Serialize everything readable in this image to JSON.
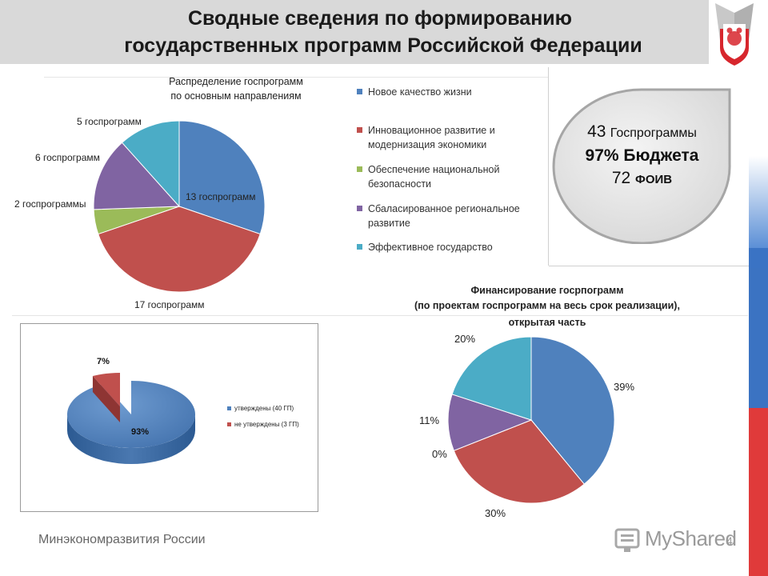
{
  "header": {
    "title_line1": "Сводные сведения по формированию",
    "title_line2": "государственных программ Российской Федерации"
  },
  "summary": {
    "line1_num": "43",
    "line1_text": "Госпрограммы",
    "line2": "97% Бюджета",
    "line3_num": "72",
    "line3_text": "ФОИВ"
  },
  "colors": {
    "blue": "#4f81bd",
    "red": "#c0504d",
    "green": "#9bbb59",
    "purple": "#8064a2",
    "teal": "#4bacc6"
  },
  "chart_data": [
    {
      "type": "pie",
      "title_line1": "Распределение госпрограмм",
      "title_line2": "по основным направлениям",
      "categories": [
        "Новое качество жизни",
        "Инновационное развитие и модернизация экономики",
        "Обеспечение национальной безопасности",
        "Сбаласированное региональное развитие",
        "Эффективное государство"
      ],
      "values": [
        13,
        17,
        2,
        6,
        5
      ],
      "labels": [
        "13 госпрограмм",
        "17 госпрограмм",
        "2 госпрограммы",
        "6 госпрограмм",
        "5 госпрограмм"
      ],
      "legend_position": "right",
      "legend": [
        "Новое качество жизни",
        "Инновационное развитие и\nмодернизация экономики",
        "Обеспечение национальной\nбезопасности",
        "Сбаласированное региональное\nразвитие",
        "Эффективное государство"
      ]
    },
    {
      "type": "pie",
      "title": "",
      "style": "3d-exploded",
      "categories": [
        "утверждены (40 ГП)",
        "не утверждены (3 ГП)"
      ],
      "values": [
        93,
        7
      ],
      "labels": [
        "93%",
        "7%"
      ],
      "legend_position": "right"
    },
    {
      "type": "pie",
      "title_line1": "Финансирование госрпограмм",
      "title_line2": "(по проектам госпрограмм на весь срок реализации),",
      "title_line3": "открытая часть",
      "values": [
        39,
        30,
        0,
        11,
        20
      ],
      "labels": [
        "39%",
        "30%",
        "0%",
        "11%",
        "20%"
      ],
      "legend_position": "none"
    }
  ],
  "footer": {
    "org": "Минэкономразвития России"
  },
  "watermark": {
    "brand": "MyShared",
    "page": "4"
  }
}
